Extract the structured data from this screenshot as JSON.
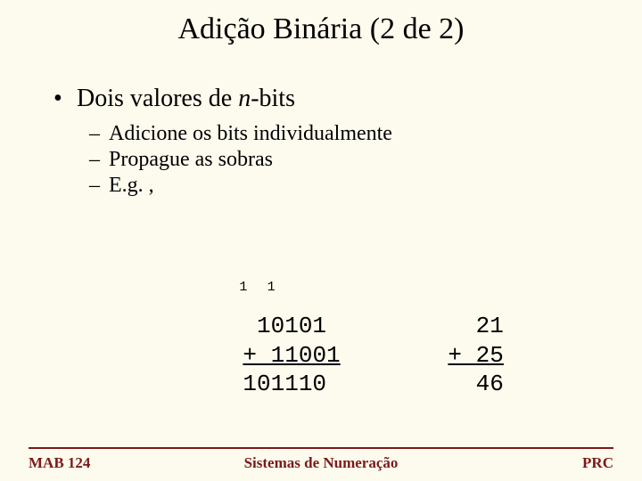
{
  "colors": {
    "background": "#fdfbee",
    "text": "#000000",
    "footer": "#7a1a1a",
    "rule": "#7a1a1a"
  },
  "typography": {
    "title_fontsize_pt": 26,
    "bullet1_fontsize_pt": 21,
    "bullet2_fontsize_pt": 18,
    "mono_fontsize_pt": 20,
    "footer_fontsize_pt": 13,
    "carry_fontsize_pt": 11,
    "title_font": "Times New Roman",
    "body_font": "Times New Roman",
    "mono_font": "Courier New"
  },
  "title": "Adição Binária (2 de 2)",
  "bullet": {
    "text_pre": "Dois valores de ",
    "text_italic": "n",
    "text_post": "-bits"
  },
  "subbullets": [
    "Adicione os bits individualmente",
    "Propague as sobras",
    "E.g. ,"
  ],
  "example": {
    "binary": {
      "carries": "1  1   ",
      "operand1": " 10101",
      "operand2": " 11001",
      "op": "+",
      "result": "101110"
    },
    "decimal": {
      "operand1": "21",
      "operand2": "25",
      "op": "+",
      "result": "46"
    }
  },
  "footer": {
    "left": "MAB 124",
    "center": "Sistemas de Numeração",
    "right": "PRC"
  }
}
